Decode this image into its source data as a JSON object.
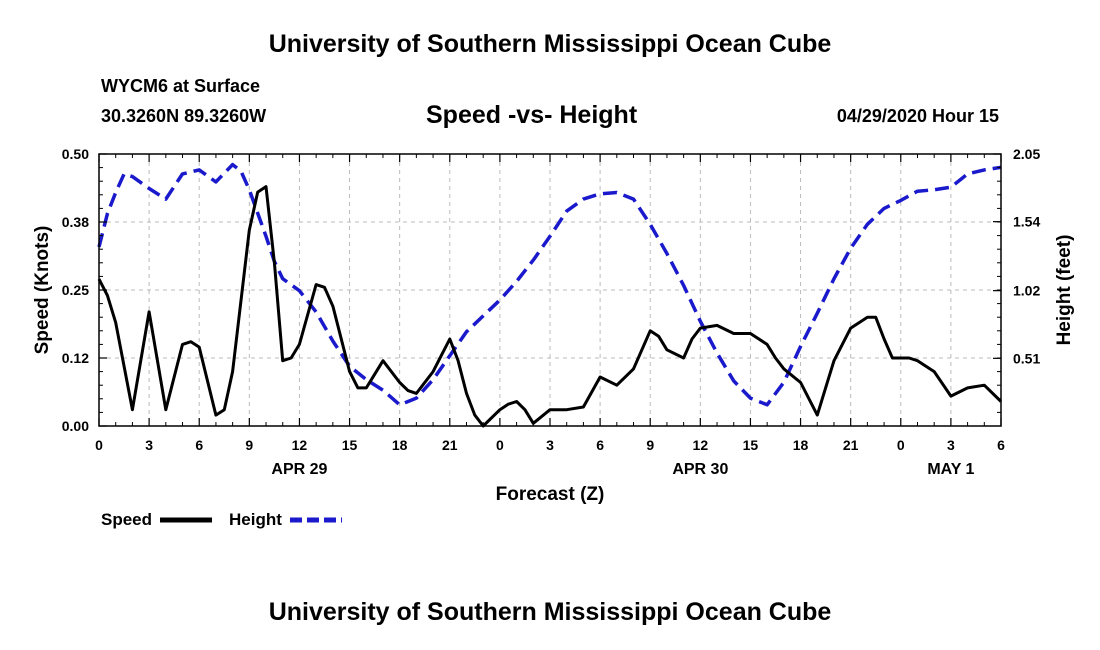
{
  "header": {
    "title": "University of Southern Mississippi Ocean Cube",
    "station": "WYCM6 at Surface",
    "coords": "30.3260N 89.3260W",
    "subtitle": "Speed -vs- Height",
    "datetime": "04/29/2020 Hour 15"
  },
  "footer": {
    "title": "University of Southern Mississippi Ocean Cube"
  },
  "legend": {
    "speed_label": "Speed",
    "height_label": "Height"
  },
  "colors": {
    "speed": "#000000",
    "height": "#1a1acc",
    "grid": "#bbbbbb"
  },
  "chart_data": {
    "type": "line",
    "title": "Speed -vs- Height",
    "xlabel": "Forecast (Z)",
    "ylabel": "Speed (Knots)",
    "y2label": "Height (feet)",
    "xlim": [
      0,
      54
    ],
    "ylim": [
      0,
      0.5
    ],
    "y2lim": [
      0,
      2.05
    ],
    "x_ticks": [
      0,
      3,
      6,
      9,
      12,
      15,
      18,
      21,
      24,
      27,
      30,
      33,
      36,
      39,
      42,
      45,
      48,
      51,
      54
    ],
    "x_tick_labels": [
      "0",
      "3",
      "6",
      "9",
      "12",
      "15",
      "18",
      "21",
      "0",
      "3",
      "6",
      "9",
      "12",
      "15",
      "18",
      "21",
      "0",
      "3",
      "6"
    ],
    "y_tick_labels": [
      "0.00",
      "0.12",
      "0.25",
      "0.38",
      "0.50"
    ],
    "y2_tick_values": [
      0.51,
      1.02,
      1.54,
      2.05
    ],
    "y2_tick_labels": [
      "0.51",
      "1.02",
      "1.54",
      "2.05"
    ],
    "date_labels": [
      {
        "x": 12,
        "label": "APR 29"
      },
      {
        "x": 36,
        "label": "APR 30"
      },
      {
        "x": 51,
        "label": "MAY 1"
      }
    ],
    "series": [
      {
        "name": "Speed",
        "axis": "left",
        "style": "solid",
        "x": [
          0,
          0.5,
          1,
          2,
          3,
          4,
          5,
          5.5,
          6,
          7,
          7.5,
          8,
          9,
          9.5,
          10,
          10.5,
          11,
          11.5,
          12,
          13,
          13.5,
          14,
          15,
          15.5,
          16,
          17,
          18,
          18.5,
          19,
          20,
          20.5,
          21,
          21.5,
          22,
          22.5,
          23,
          24,
          24.5,
          25,
          25.5,
          26,
          27,
          28,
          29,
          30,
          31,
          32,
          33,
          33.5,
          34,
          35,
          35.5,
          36,
          37,
          38,
          38.5,
          39,
          40,
          40.5,
          41,
          42,
          43,
          43.5,
          44,
          45,
          46,
          46.5,
          47,
          47.5,
          48,
          48.5,
          49,
          50,
          51,
          52,
          53,
          54
        ],
        "values": [
          0.27,
          0.24,
          0.19,
          0.03,
          0.21,
          0.03,
          0.15,
          0.155,
          0.145,
          0.02,
          0.03,
          0.1,
          0.36,
          0.43,
          0.44,
          0.3,
          0.12,
          0.125,
          0.15,
          0.26,
          0.255,
          0.22,
          0.1,
          0.07,
          0.07,
          0.12,
          0.08,
          0.065,
          0.06,
          0.1,
          0.13,
          0.16,
          0.12,
          0.06,
          0.02,
          0.0,
          0.03,
          0.04,
          0.045,
          0.03,
          0.005,
          0.03,
          0.03,
          0.035,
          0.09,
          0.075,
          0.105,
          0.175,
          0.165,
          0.14,
          0.125,
          0.16,
          0.18,
          0.185,
          0.17,
          0.17,
          0.17,
          0.15,
          0.125,
          0.105,
          0.08,
          0.02,
          0.07,
          0.12,
          0.18,
          0.2,
          0.2,
          0.16,
          0.125,
          0.125,
          0.125,
          0.12,
          0.1,
          0.055,
          0.07,
          0.075,
          0.045
        ]
      },
      {
        "name": "Height",
        "axis": "right",
        "style": "dashed",
        "x": [
          0,
          0.5,
          1,
          1.5,
          2,
          3,
          4,
          5,
          6,
          7,
          8,
          8.5,
          9,
          10,
          10.5,
          11,
          12,
          13,
          14,
          15,
          16,
          17,
          18,
          19,
          20,
          21,
          22,
          24,
          25,
          26,
          27,
          28,
          29,
          30,
          31,
          32,
          33,
          34,
          35,
          36,
          37,
          38,
          39,
          40,
          41,
          42,
          43,
          44,
          45,
          46,
          47,
          48,
          49,
          50,
          51,
          52,
          53,
          54
        ],
        "values": [
          1.35,
          1.6,
          1.76,
          1.9,
          1.88,
          1.79,
          1.71,
          1.9,
          1.93,
          1.84,
          1.97,
          1.92,
          1.78,
          1.43,
          1.24,
          1.11,
          1.02,
          0.86,
          0.64,
          0.45,
          0.35,
          0.27,
          0.16,
          0.21,
          0.35,
          0.53,
          0.71,
          0.95,
          1.09,
          1.25,
          1.43,
          1.62,
          1.71,
          1.75,
          1.76,
          1.71,
          1.52,
          1.3,
          1.06,
          0.79,
          0.55,
          0.34,
          0.21,
          0.16,
          0.33,
          0.6,
          0.85,
          1.11,
          1.34,
          1.52,
          1.64,
          1.7,
          1.77,
          1.78,
          1.8,
          1.9,
          1.93,
          1.95
        ]
      }
    ]
  }
}
